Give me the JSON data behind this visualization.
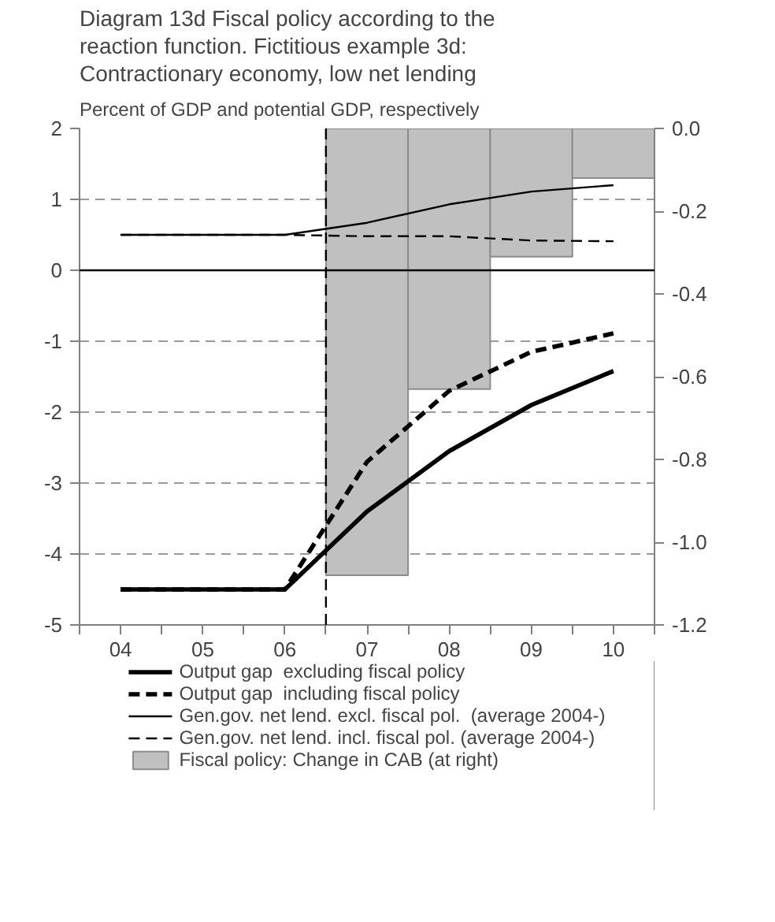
{
  "chart_data": {
    "type": "line",
    "title": "Diagram 13d Fiscal policy according to the reaction function. Fictitious example 3d: Contractionary economy, low net lending",
    "subtitle": "Percent of GDP and potential GDP, respectively",
    "x": [
      2004,
      2005,
      2006,
      2007,
      2008,
      2009,
      2010
    ],
    "xlim": [
      2003.5,
      2010.5
    ],
    "xticks": [
      {
        "value": 2003.5,
        "label": null
      },
      {
        "value": 2004,
        "label": "04"
      },
      {
        "value": 2004.5,
        "label": null
      },
      {
        "value": 2005,
        "label": "05"
      },
      {
        "value": 2005.5,
        "label": null
      },
      {
        "value": 2006,
        "label": "06"
      },
      {
        "value": 2006.5,
        "label": null
      },
      {
        "value": 2007,
        "label": "07"
      },
      {
        "value": 2007.5,
        "label": null
      },
      {
        "value": 2008,
        "label": "08"
      },
      {
        "value": 2008.5,
        "label": null
      },
      {
        "value": 2009,
        "label": "09"
      },
      {
        "value": 2009.5,
        "label": null
      },
      {
        "value": 2010,
        "label": "10"
      },
      {
        "value": 2010.5,
        "label": null
      }
    ],
    "ylim": [
      -5,
      2
    ],
    "yticks": [
      -5,
      -4,
      -3,
      -2,
      -1,
      0,
      1,
      2
    ],
    "y2lim": [
      -1.2,
      0.0
    ],
    "y2ticks": [
      {
        "value": -1.2,
        "label": "-1.2"
      },
      {
        "value": -1.0,
        "label": "-1.0"
      },
      {
        "value": -0.8,
        "label": "-0.8"
      },
      {
        "value": -0.6,
        "label": "-0.6"
      },
      {
        "value": -0.4,
        "label": "-0.4"
      },
      {
        "value": -0.2,
        "label": "-0.2"
      },
      {
        "value": 0.0,
        "label": "0.0"
      }
    ],
    "grid": "y",
    "legend": "bottom",
    "ref_lines": [
      {
        "axis": "y",
        "value": 0,
        "color": "#000000",
        "line_style": "solid"
      },
      {
        "axis": "x",
        "value": 2006.5,
        "color": "#000000",
        "line_style": "dashed"
      }
    ],
    "series": [
      {
        "name": "Fiscal policy: Change in CAB (at right)",
        "type": "bar",
        "axis": "y2",
        "color": "#c0c0c0",
        "x": [
          2007,
          2008,
          2009,
          2010
        ],
        "values": [
          -1.08,
          -0.63,
          -0.31,
          -0.12
        ]
      },
      {
        "name": "Output gap  excluding fiscal policy",
        "type": "line",
        "color": "#000000",
        "line_style": "solid",
        "values": [
          -4.5,
          -4.5,
          -4.5,
          -3.4,
          -2.55,
          -1.9,
          -1.42
        ]
      },
      {
        "name": "Output gap  including fiscal policy",
        "type": "line",
        "color": "#000000",
        "line_style": "dashed",
        "values": [
          -4.5,
          -4.5,
          -4.5,
          -2.7,
          -1.7,
          -1.15,
          -0.89
        ]
      },
      {
        "name": "Gen.gov. net lend. excl. fiscal pol.  (average 2004-)",
        "type": "line",
        "color": "#000000",
        "line_style": "solid",
        "values": [
          0.5,
          0.5,
          0.5,
          0.67,
          0.93,
          1.11,
          1.2
        ]
      },
      {
        "name": "Gen.gov. net lend. incl. fiscal pol. (average 2004-)",
        "type": "line",
        "color": "#000000",
        "line_style": "dashed",
        "values": [
          0.5,
          0.5,
          0.5,
          0.48,
          0.48,
          0.42,
          0.41
        ]
      }
    ]
  }
}
